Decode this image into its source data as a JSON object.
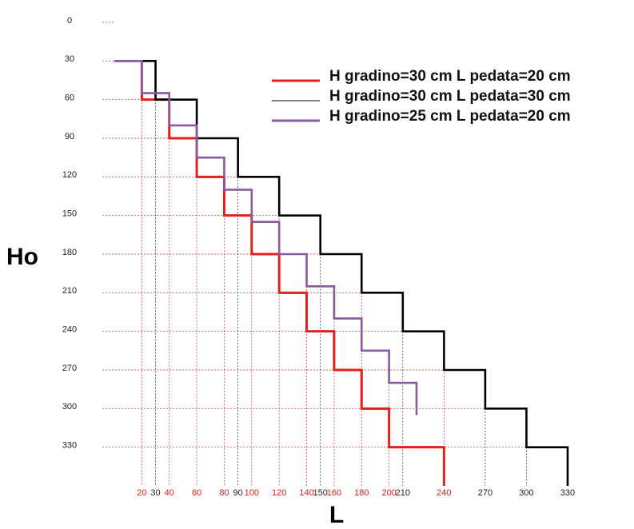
{
  "chart_data": {
    "type": "step-lines",
    "xlabel": "L",
    "ylabel": "Ho",
    "ylim": [
      0,
      360
    ],
    "xlim": [
      0,
      330
    ],
    "y_inverted": true,
    "yticks": [
      0,
      30,
      60,
      90,
      120,
      150,
      180,
      210,
      240,
      270,
      300,
      330
    ],
    "xticks": [
      20,
      30,
      40,
      60,
      80,
      90,
      100,
      120,
      140,
      150,
      160,
      180,
      200,
      210,
      240,
      270,
      300,
      330
    ],
    "xtick_colors": [
      "#e0201c",
      "#222222",
      "#e0201c",
      "#e0201c",
      "#e0201c",
      "#222222",
      "#e0201c",
      "#e0201c",
      "#e0201c",
      "#222222",
      "#e0201c",
      "#e0201c",
      "#e0201c",
      "#222222",
      "#e0201c",
      "#222222",
      "#222222",
      "#222222"
    ],
    "series": [
      {
        "name": "H gradino=30 cm L pedata=20 cm",
        "color": "#e3201b",
        "x": [
          20,
          20,
          40,
          40,
          60,
          60,
          80,
          80,
          100,
          100,
          120,
          120,
          140,
          140,
          160,
          160,
          180,
          180,
          200,
          200,
          220,
          220,
          240,
          240
        ],
        "y": [
          30,
          60,
          60,
          90,
          90,
          120,
          120,
          150,
          150,
          180,
          180,
          210,
          210,
          240,
          240,
          270,
          270,
          300,
          300,
          330,
          330,
          330,
          330,
          360
        ]
      },
      {
        "name": "H gradino=30 cm L pedata=30 cm",
        "color": "#000000",
        "x": [
          0,
          30,
          30,
          60,
          60,
          90,
          90,
          120,
          120,
          150,
          150,
          180,
          180,
          210,
          210,
          240,
          240,
          270,
          270,
          300,
          300,
          330,
          330
        ],
        "y": [
          30,
          30,
          60,
          60,
          90,
          90,
          120,
          120,
          150,
          150,
          180,
          180,
          210,
          210,
          240,
          240,
          270,
          270,
          300,
          300,
          330,
          330,
          360
        ]
      },
      {
        "name": "H gradino=25 cm L pedata=20 cm",
        "color": "#8a5a9e",
        "x": [
          0,
          20,
          20,
          40,
          40,
          60,
          60,
          80,
          80,
          100,
          100,
          120,
          120,
          140,
          140,
          160,
          160,
          180,
          180,
          200,
          200,
          220,
          220
        ],
        "y": [
          30,
          30,
          55,
          55,
          80,
          80,
          105,
          105,
          130,
          130,
          155,
          155,
          180,
          180,
          205,
          205,
          230,
          230,
          255,
          255,
          280,
          280,
          305
        ]
      }
    ]
  }
}
